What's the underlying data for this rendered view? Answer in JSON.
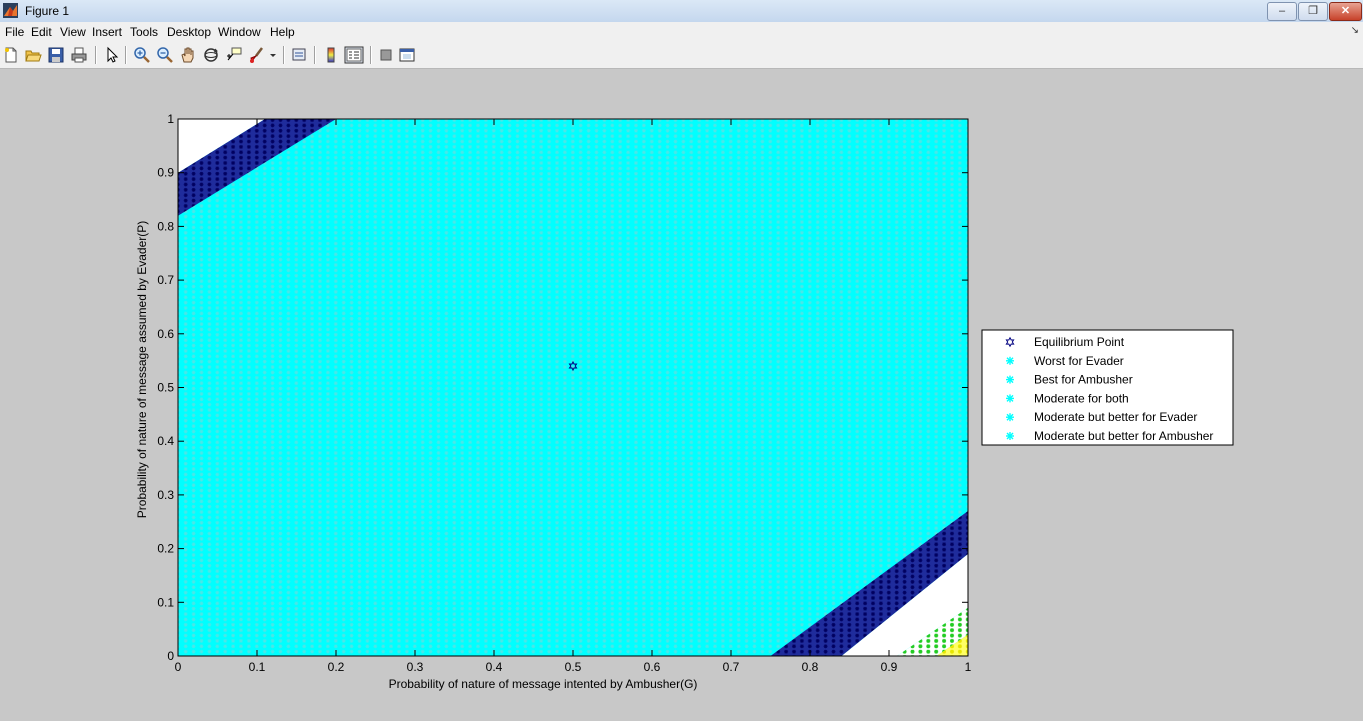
{
  "window": {
    "title": "Figure 1",
    "min": "–",
    "restore": "❐",
    "close": "✕"
  },
  "menu": [
    "File",
    "Edit",
    "View",
    "Insert",
    "Tools",
    "Desktop",
    "Window",
    "Help"
  ],
  "toolbar_icons": [
    "new-figure-icon",
    "open-file-icon",
    "save-icon",
    "print-icon",
    "select-arrow-icon",
    "zoom-in-icon",
    "zoom-out-icon",
    "pan-hand-icon",
    "rotate-3d-icon",
    "data-cursor-icon",
    "brush-icon",
    "brush-dropdown-icon",
    "link-plot-icon",
    "insert-colorbar-icon",
    "insert-legend-icon",
    "hide-plot-tools-icon",
    "show-plot-tools-icon"
  ],
  "chart_data": {
    "type": "scatter",
    "xlabel": "Probability of nature of message intented by Ambusher(G)",
    "ylabel": "Probability of nature of message assumed by Evader(P)",
    "xlim": [
      0,
      1
    ],
    "ylim": [
      0,
      1
    ],
    "x_ticks": [
      "0",
      "0.1",
      "0.2",
      "0.3",
      "0.4",
      "0.5",
      "0.6",
      "0.7",
      "0.8",
      "0.9",
      "1"
    ],
    "y_ticks": [
      "0",
      "0.1",
      "0.2",
      "0.3",
      "0.4",
      "0.5",
      "0.6",
      "0.7",
      "0.8",
      "0.9",
      "1"
    ],
    "grid": false,
    "legend_position": "outside-right",
    "background_fill": "#00ffff",
    "series": [
      {
        "name": "Equilibrium Point",
        "marker": "hexagram",
        "color": "#000080",
        "points": [
          [
            0.5,
            0.54
          ]
        ]
      },
      {
        "name": "Worst for Evader",
        "marker": "asterisk",
        "color": "#00ffff",
        "region": "covers the plot except the corner bands"
      },
      {
        "name": "Best for Ambusher",
        "marker": "asterisk",
        "color": "#000080",
        "bands": [
          {
            "polygon": [
              [
                0.0,
                0.82
              ],
              [
                0.0,
                0.9
              ],
              [
                0.11,
                1.0
              ],
              [
                0.2,
                1.0
              ]
            ]
          },
          {
            "polygon": [
              [
                0.75,
                0.0
              ],
              [
                0.84,
                0.0
              ],
              [
                1.0,
                0.19
              ],
              [
                1.0,
                0.27
              ]
            ]
          }
        ]
      },
      {
        "name": "Moderate for both",
        "marker": "asterisk",
        "color": "#ffffff",
        "bands": [
          {
            "polygon": [
              [
                0.0,
                0.9
              ],
              [
                0.0,
                1.0
              ],
              [
                0.11,
                1.0
              ]
            ]
          },
          {
            "polygon": [
              [
                0.84,
                0.0
              ],
              [
                0.91,
                0.0
              ],
              [
                1.0,
                0.09
              ],
              [
                1.0,
                0.19
              ]
            ]
          }
        ]
      },
      {
        "name": "Moderate but better for Evader",
        "marker": "asterisk",
        "color": "#00dd00",
        "bands": [
          {
            "polygon": [
              [
                0.91,
                0.0
              ],
              [
                0.96,
                0.0
              ],
              [
                1.0,
                0.04
              ],
              [
                1.0,
                0.09
              ]
            ]
          }
        ]
      },
      {
        "name": "Moderate but better for Ambusher",
        "marker": "asterisk",
        "color": "#ffff00",
        "bands": [
          {
            "polygon": [
              [
                0.96,
                0.0
              ],
              [
                1.0,
                0.0
              ],
              [
                1.0,
                0.04
              ]
            ]
          }
        ]
      }
    ],
    "legend": [
      "Equilibrium Point",
      "Worst for Evader",
      "Best for Ambusher",
      "Moderate for both",
      "Moderate but better for Evader",
      "Moderate but better for Ambusher"
    ],
    "legend_colors": [
      "#000080",
      "#00ffff",
      "#00ffff",
      "#00ffff",
      "#00ffff",
      "#00ffff"
    ]
  }
}
